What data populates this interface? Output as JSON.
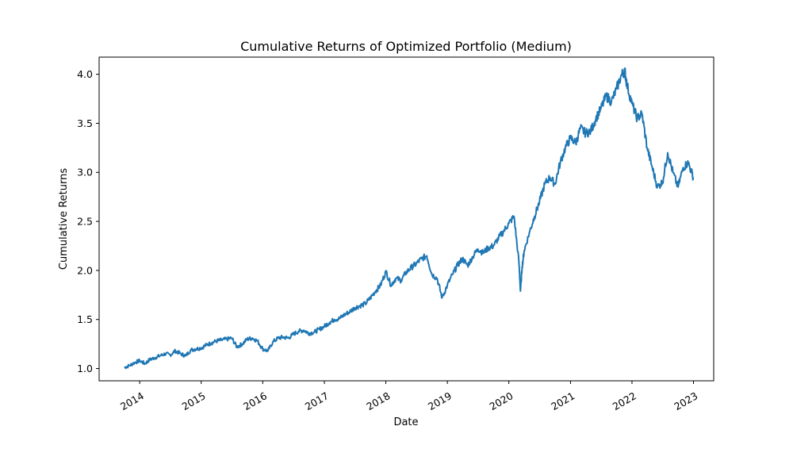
{
  "chart_data": {
    "type": "line",
    "title": "Cumulative Returns of Optimized Portfolio (Medium)",
    "xlabel": "Date",
    "ylabel": "Cumulative Returns",
    "xlim": [
      "2013-05-05",
      "2023-05-01"
    ],
    "ylim": [
      0.875,
      4.175
    ],
    "grid": false,
    "color": "#1f77b4",
    "x_ticks": [
      "2014-01-01",
      "2015-01-01",
      "2016-01-01",
      "2017-01-01",
      "2018-01-01",
      "2019-01-01",
      "2020-01-01",
      "2021-01-01",
      "2022-01-01",
      "2023-01-01"
    ],
    "x_tick_labels": [
      "2014",
      "2015",
      "2016",
      "2017",
      "2018",
      "2019",
      "2020",
      "2021",
      "2022",
      "2023"
    ],
    "y_ticks": [
      1.0,
      1.5,
      2.0,
      2.5,
      3.0,
      3.5,
      4.0
    ],
    "y_tick_labels": [
      "1.0",
      "1.5",
      "2.0",
      "2.5",
      "3.0",
      "3.5",
      "4.0"
    ],
    "series": [
      {
        "x": [
          "2013-10-01",
          "2013-11-01",
          "2013-12-01",
          "2014-01-01",
          "2014-02-01",
          "2014-03-01",
          "2014-04-01",
          "2014-05-01",
          "2014-06-01",
          "2014-07-01",
          "2014-08-01",
          "2014-09-01",
          "2014-10-01",
          "2014-11-01",
          "2014-12-01",
          "2015-01-01",
          "2015-02-01",
          "2015-03-01",
          "2015-04-01",
          "2015-05-01",
          "2015-06-01",
          "2015-07-01",
          "2015-08-01",
          "2015-09-01",
          "2015-10-01",
          "2015-11-01",
          "2015-12-01",
          "2016-01-01",
          "2016-02-01",
          "2016-03-01",
          "2016-04-01",
          "2016-05-01",
          "2016-06-01",
          "2016-07-01",
          "2016-08-01",
          "2016-09-01",
          "2016-10-01",
          "2016-11-01",
          "2016-12-01",
          "2017-01-01",
          "2017-02-01",
          "2017-03-01",
          "2017-04-01",
          "2017-05-01",
          "2017-06-01",
          "2017-07-01",
          "2017-08-01",
          "2017-09-01",
          "2017-10-01",
          "2017-11-01",
          "2017-12-01",
          "2018-01-01",
          "2018-02-01",
          "2018-03-01",
          "2018-04-01",
          "2018-05-01",
          "2018-06-01",
          "2018-07-01",
          "2018-08-01",
          "2018-09-01",
          "2018-10-01",
          "2018-11-01",
          "2018-12-01",
          "2019-01-01",
          "2019-02-01",
          "2019-03-01",
          "2019-04-01",
          "2019-05-01",
          "2019-06-01",
          "2019-07-01",
          "2019-08-01",
          "2019-09-01",
          "2019-10-01",
          "2019-11-01",
          "2019-12-01",
          "2020-01-01",
          "2020-02-01",
          "2020-03-01",
          "2020-03-10",
          "2020-03-20",
          "2020-04-01",
          "2020-05-01",
          "2020-06-01",
          "2020-07-01",
          "2020-08-01",
          "2020-09-01",
          "2020-10-01",
          "2020-11-01",
          "2020-12-01",
          "2021-01-01",
          "2021-02-01",
          "2021-03-01",
          "2021-04-01",
          "2021-05-01",
          "2021-06-01",
          "2021-07-01",
          "2021-08-01",
          "2021-09-01",
          "2021-10-01",
          "2021-11-01",
          "2021-11-20",
          "2021-12-01",
          "2022-01-01",
          "2022-02-01",
          "2022-03-01",
          "2022-04-01",
          "2022-05-01",
          "2022-06-01",
          "2022-07-01",
          "2022-08-01",
          "2022-09-01",
          "2022-10-01",
          "2022-11-01",
          "2022-12-01",
          "2022-12-31"
        ],
        "values": [
          1.01,
          1.03,
          1.06,
          1.08,
          1.05,
          1.09,
          1.11,
          1.13,
          1.15,
          1.14,
          1.18,
          1.15,
          1.13,
          1.19,
          1.2,
          1.21,
          1.24,
          1.26,
          1.28,
          1.29,
          1.3,
          1.31,
          1.22,
          1.25,
          1.3,
          1.31,
          1.28,
          1.2,
          1.18,
          1.27,
          1.31,
          1.32,
          1.31,
          1.35,
          1.38,
          1.39,
          1.36,
          1.37,
          1.4,
          1.43,
          1.47,
          1.5,
          1.51,
          1.55,
          1.58,
          1.62,
          1.64,
          1.66,
          1.72,
          1.79,
          1.85,
          1.99,
          1.85,
          1.92,
          1.9,
          1.98,
          2.03,
          2.07,
          2.12,
          2.15,
          1.96,
          1.92,
          1.72,
          1.85,
          1.96,
          2.05,
          2.12,
          2.05,
          2.14,
          2.22,
          2.18,
          2.23,
          2.25,
          2.33,
          2.4,
          2.48,
          2.55,
          2.08,
          1.79,
          2.04,
          2.2,
          2.38,
          2.55,
          2.7,
          2.88,
          2.95,
          2.88,
          3.1,
          3.25,
          3.35,
          3.3,
          3.45,
          3.4,
          3.42,
          3.55,
          3.65,
          3.78,
          3.72,
          3.85,
          4.0,
          4.03,
          3.9,
          3.7,
          3.55,
          3.6,
          3.25,
          3.05,
          2.85,
          2.9,
          3.2,
          3.0,
          2.85,
          3.05,
          3.1,
          2.95
        ]
      }
    ]
  }
}
